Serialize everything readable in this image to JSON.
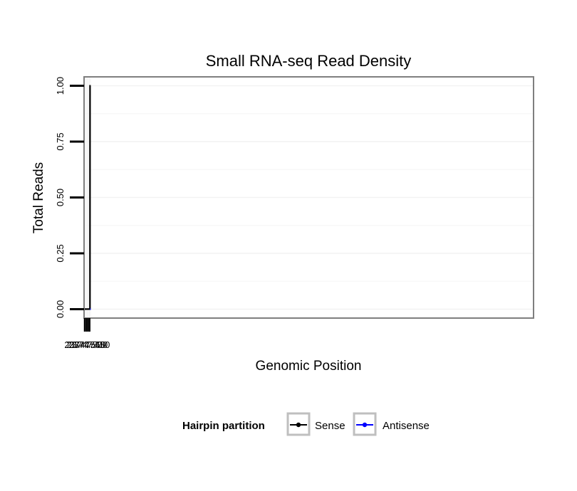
{
  "chart_data": {
    "type": "line",
    "title": "Small RNA-seq Read Density",
    "xlabel": "Genomic Position",
    "ylabel": "Total Reads",
    "x_reversed": true,
    "xlim": [
      23747570,
      23737415
    ],
    "ylim": [
      -0.04,
      1.04
    ],
    "x_ticks": [
      {
        "value": 23747550,
        "label": "23747550"
      },
      {
        "value": 23747500,
        "label": "23747500"
      },
      {
        "value": 23747450,
        "label": "23747450"
      }
    ],
    "y_ticks": [
      {
        "value": 0.0,
        "label": "0.00"
      },
      {
        "value": 0.25,
        "label": "0.25"
      },
      {
        "value": 0.5,
        "label": "0.50"
      },
      {
        "value": 0.75,
        "label": "0.75"
      },
      {
        "value": 1.0,
        "label": "1.00"
      }
    ],
    "series": [
      {
        "name": "Sense",
        "color": "#000000",
        "x": [
          23747562,
          23747436,
          23747435,
          23747418
        ],
        "y": [
          0,
          0,
          1,
          1
        ]
      },
      {
        "name": "Antisense",
        "color": "#0000ff",
        "x": [
          23747437,
          23747418
        ],
        "y": [
          0,
          0
        ]
      }
    ],
    "legend": {
      "title": "Hairpin partition",
      "position": "bottom",
      "items": [
        "Sense",
        "Antisense"
      ]
    },
    "grid": true
  }
}
